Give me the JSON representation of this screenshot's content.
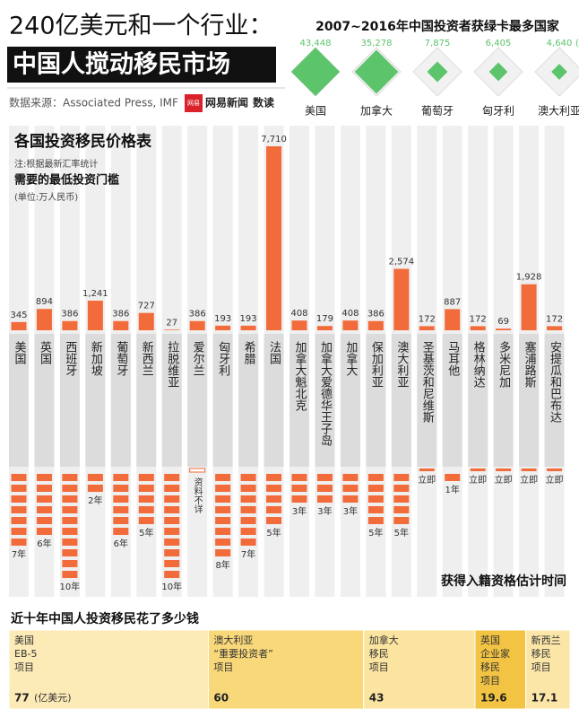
{
  "header": {
    "title_line1": "240亿美元和一个行业：",
    "title_line2": "中国人搅动移民市场",
    "source": "数据来源：Associated Press, IMF",
    "brand_logo": "网易",
    "brand": "网易新闻",
    "brand_section": "数读"
  },
  "chart_data": [
    {
      "type": "diamond",
      "title": "2007~2016年中国投资者获绿卡最多国家",
      "unit": "(张)",
      "color": "#5cc46a",
      "categories": [
        "美国",
        "加拿大",
        "葡萄牙",
        "匈牙利",
        "澳大利亚"
      ],
      "values": [
        43448,
        35278,
        7875,
        6405,
        4640
      ],
      "value_labels": [
        "43,448",
        "35,278",
        "7,875",
        "6,405",
        "4,640"
      ]
    },
    {
      "type": "column",
      "title": "各国投资移民价格表",
      "note": "注:根据最新汇率统计",
      "subtitle": "需要的最低投资门槛",
      "unit": "(单位:万人民币)",
      "annotation": "获得入籍资格估计时间",
      "color": "#f26b3a",
      "categories": [
        "美国",
        "英国",
        "西班牙",
        "新加坡",
        "葡萄牙",
        "新西兰",
        "拉脱维亚",
        "爱尔兰",
        "匈牙利",
        "希腊",
        "法国",
        "加拿大魁北克",
        "加拿大爱德华王子岛",
        "加拿大",
        "保加利亚",
        "澳大利亚",
        "圣基茨和尼维斯",
        "马耳他",
        "格林纳达",
        "多米尼加",
        "塞浦路斯",
        "安提瓜和巴布达"
      ],
      "series": [
        {
          "name": "需要的最低投资门槛",
          "values": [
            345,
            894,
            386,
            1241,
            386,
            727,
            27,
            386,
            193,
            193,
            7710,
            408,
            179,
            408,
            386,
            2574,
            172,
            887,
            172,
            69,
            1928,
            172
          ],
          "value_labels": [
            "345",
            "894",
            "386",
            "1,241",
            "386",
            "727",
            "27",
            "386",
            "193",
            "193",
            "7,710",
            "408",
            "179",
            "408",
            "386",
            "2,574",
            "172",
            "887",
            "172",
            "69",
            "1,928",
            "172"
          ]
        },
        {
          "name": "获得入籍资格估计时间",
          "values": [
            7,
            6,
            10,
            2,
            6,
            5,
            10,
            null,
            8,
            7,
            5,
            3,
            3,
            3,
            5,
            5,
            0,
            1,
            0,
            0,
            0,
            0
          ],
          "value_labels": [
            "7年",
            "6年",
            "10年",
            "2年",
            "6年",
            "5年",
            "10年",
            "资料不详",
            "8年",
            "7年",
            "5年",
            "3年",
            "3年",
            "3年",
            "5年",
            "5年",
            "立即",
            "1年",
            "立即",
            "立即",
            "立即",
            "立即"
          ]
        }
      ]
    },
    {
      "type": "strip",
      "title": "近十年中国人投资移民花了多少钱",
      "unit": "(亿美元)",
      "categories": [
        "美国\nEB-5\n项目",
        "澳大利亚\n“重要投资者”\n项目",
        "加拿大\n移民\n项目",
        "英国\n企业家\n移民\n项目",
        "新西兰\n移民\n项目"
      ],
      "values": [
        77,
        60,
        43,
        19.6,
        17.1
      ],
      "colors": [
        "#fcebb6",
        "#f9d87a",
        "#fbe4a0",
        "#f3c443",
        "#fbe6a8"
      ]
    }
  ]
}
